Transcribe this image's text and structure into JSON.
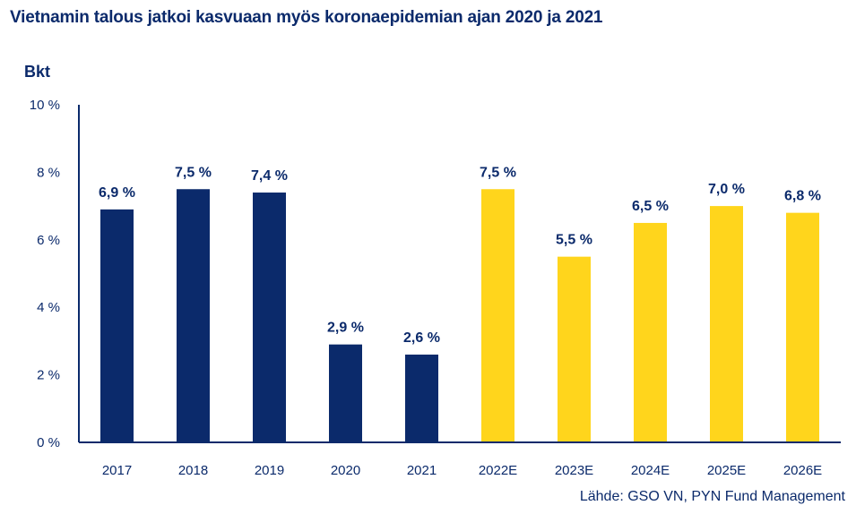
{
  "chart_data": {
    "type": "bar",
    "title": "Vietnamin talous jatkoi kasvuaan myös koronaepidemian ajan 2020 ja 2021",
    "ylabel": "Bkt",
    "xlabel": "",
    "source": "Lähde: GSO VN, PYN Fund Management",
    "ylim": [
      0,
      10
    ],
    "yticks": [
      {
        "value": 0,
        "label": "0 %"
      },
      {
        "value": 2,
        "label": "2 %"
      },
      {
        "value": 4,
        "label": "4 %"
      },
      {
        "value": 6,
        "label": "6 %"
      },
      {
        "value": 8,
        "label": "8 %"
      },
      {
        "value": 10,
        "label": "10 %"
      }
    ],
    "categories": [
      "2017",
      "2018",
      "2019",
      "2020",
      "2021",
      "2022E",
      "2023E",
      "2024E",
      "2025E",
      "2026E"
    ],
    "values": [
      6.9,
      7.5,
      7.4,
      2.9,
      2.6,
      7.5,
      5.5,
      6.5,
      7.0,
      6.8
    ],
    "data_labels": [
      "6,9 %",
      "7,5 %",
      "7,4 %",
      "2,9 %",
      "2,6 %",
      "7,5 %",
      "5,5 %",
      "6,5 %",
      "7,0 %",
      "6,8 %"
    ],
    "colors": {
      "actual": "#0b2a6b",
      "estimate": "#ffd51c",
      "axis": "#0b2a6b",
      "text": "#0b2a6b"
    },
    "estimate_from_index": 5
  }
}
